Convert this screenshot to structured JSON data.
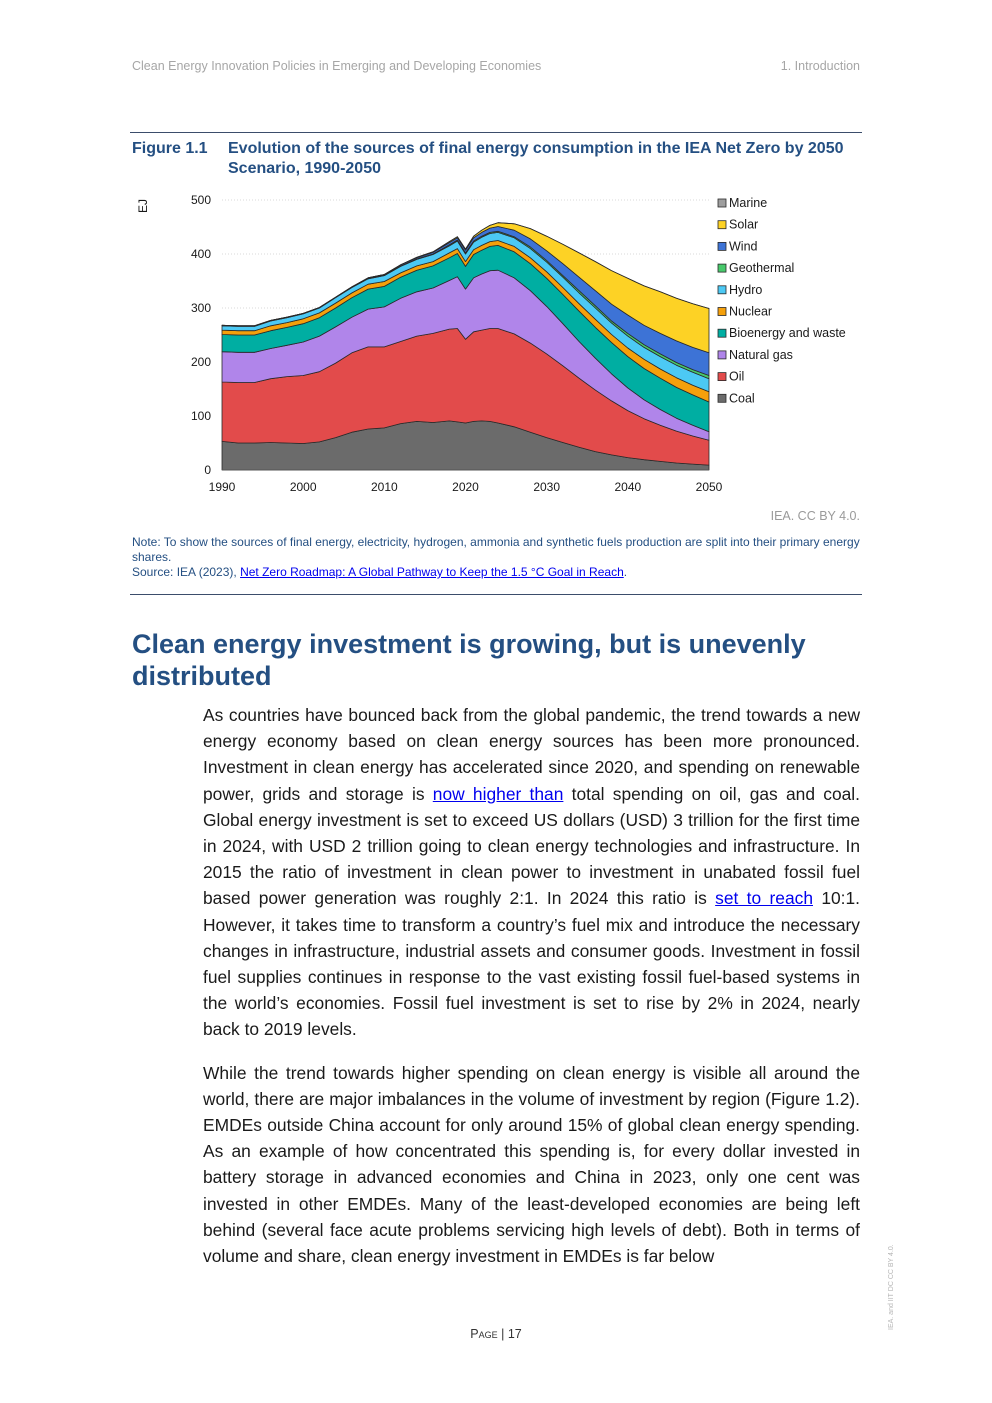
{
  "header": {
    "left": "Clean Energy Innovation Policies in Emerging and Developing Economies",
    "right": "1. Introduction"
  },
  "figure": {
    "number": "Figure 1.1",
    "title": "Evolution of the sources of final energy consumption in the IEA Net Zero by 2050 Scenario, 1990-2050",
    "credit": "IEA. CC BY 4.0.",
    "note": "Note: To show the sources of final energy, electricity, hydrogen, ammonia and synthetic fuels production are split into their primary energy shares.",
    "source_prefix": "Source: IEA (2023), ",
    "source_link": "Net Zero Roadmap: A Global Pathway to Keep the 1.5 °C Goal in Reach",
    "source_suffix": "."
  },
  "chart_data": {
    "type": "area",
    "stacked": true,
    "ylabel": "EJ",
    "ylim": [
      0,
      500
    ],
    "yticks": [
      "0",
      "100",
      "200",
      "300",
      "400",
      "500"
    ],
    "xlim": [
      1990,
      2050
    ],
    "xticks": [
      "1990",
      "2000",
      "2010",
      "2020",
      "2030",
      "2040",
      "2050"
    ],
    "legend_position": "right",
    "x": [
      1990,
      1992,
      1994,
      1996,
      1998,
      2000,
      2002,
      2004,
      2006,
      2008,
      2010,
      2012,
      2014,
      2016,
      2018,
      2019,
      2020,
      2021,
      2022,
      2023,
      2024,
      2026,
      2028,
      2030,
      2032,
      2034,
      2036,
      2038,
      2040,
      2042,
      2044,
      2046,
      2048,
      2050
    ],
    "series": [
      {
        "name": "Coal",
        "color": "#6b6b6b",
        "values": [
          53,
          50,
          50,
          51,
          50,
          49,
          52,
          60,
          70,
          76,
          78,
          86,
          90,
          88,
          91,
          89,
          87,
          90,
          91,
          90,
          87,
          80,
          70,
          60,
          51,
          42,
          34,
          28,
          23,
          19,
          16,
          13,
          11,
          9
        ]
      },
      {
        "name": "Oil",
        "color": "#e24b4b",
        "values": [
          110,
          112,
          112,
          118,
          123,
          126,
          130,
          138,
          147,
          152,
          150,
          152,
          158,
          165,
          170,
          173,
          155,
          166,
          168,
          172,
          175,
          172,
          165,
          155,
          142,
          128,
          114,
          100,
          87,
          76,
          67,
          59,
          52,
          46
        ]
      },
      {
        "name": "Natural gas",
        "color": "#b085ea",
        "values": [
          56,
          56,
          56,
          56,
          58,
          62,
          66,
          67,
          66,
          70,
          74,
          80,
          82,
          84,
          90,
          96,
          93,
          100,
          104,
          107,
          108,
          104,
          97,
          88,
          78,
          68,
          59,
          50,
          42,
          35,
          29,
          24,
          20,
          16
        ]
      },
      {
        "name": "Bioenergy and waste",
        "color": "#00aea2",
        "values": [
          32,
          32,
          32,
          33,
          33,
          34,
          34,
          35,
          36,
          37,
          38,
          39,
          40,
          41,
          42,
          43,
          42,
          43,
          44,
          45,
          46,
          48,
          50,
          52,
          54,
          56,
          57,
          58,
          58,
          58,
          58,
          57,
          56,
          55
        ]
      },
      {
        "name": "Nuclear",
        "color": "#f5a00b",
        "values": [
          8,
          8,
          8,
          9,
          9,
          9,
          9,
          9,
          9,
          9,
          9,
          8,
          8,
          8,
          9,
          9,
          9,
          9,
          9,
          9,
          9,
          10,
          11,
          12,
          13,
          14,
          15,
          15,
          16,
          17,
          17,
          18,
          18,
          19
        ]
      },
      {
        "name": "Hydro",
        "color": "#4cc9f4",
        "values": [
          8,
          8,
          8,
          9,
          9,
          9,
          9,
          10,
          10,
          10,
          11,
          12,
          12,
          13,
          13,
          14,
          14,
          14,
          15,
          15,
          15,
          16,
          17,
          18,
          19,
          20,
          21,
          21,
          22,
          22,
          23,
          23,
          24,
          24
        ]
      },
      {
        "name": "Geothermal",
        "color": "#47c96b",
        "values": [
          1,
          1,
          1,
          1,
          1,
          1,
          1,
          1,
          1,
          1,
          1,
          1,
          1,
          1,
          2,
          2,
          2,
          2,
          2,
          2,
          2,
          2,
          3,
          3,
          3,
          4,
          4,
          4,
          5,
          5,
          5,
          5,
          5,
          6
        ]
      },
      {
        "name": "Wind",
        "color": "#3d73d6",
        "values": [
          0,
          0,
          0,
          0,
          0,
          0,
          0,
          0,
          0,
          1,
          1,
          2,
          2,
          3,
          4,
          4,
          5,
          6,
          7,
          8,
          9,
          12,
          15,
          18,
          22,
          25,
          28,
          31,
          34,
          36,
          38,
          40,
          41,
          42
        ]
      },
      {
        "name": "Solar",
        "color": "#fdd225",
        "values": [
          0,
          0,
          0,
          0,
          0,
          0,
          0,
          0,
          0,
          0,
          0,
          0,
          1,
          1,
          2,
          2,
          2,
          3,
          4,
          5,
          7,
          12,
          19,
          27,
          36,
          45,
          54,
          62,
          68,
          73,
          77,
          79,
          81,
          82
        ]
      },
      {
        "name": "Marine",
        "color": "#9e9e9e",
        "values": [
          0,
          0,
          0,
          0,
          0,
          0,
          0,
          0,
          0,
          0,
          0,
          0,
          0,
          0,
          0,
          0,
          0,
          0,
          0,
          0,
          0,
          0,
          0,
          0,
          0,
          0,
          0,
          0,
          0,
          0,
          0,
          0,
          0,
          0
        ]
      }
    ]
  },
  "section": {
    "heading": "Clean energy investment is growing, but is unevenly distributed"
  },
  "body": {
    "p1_a": "As countries have bounced back from the global pandemic, the trend towards a new energy economy based on clean energy sources has been more pronounced. Investment in clean energy has accelerated since 2020, and spending on renewable power, grids and storage is ",
    "p1_link1": "now higher than",
    "p1_b": " total spending on oil, gas and coal. Global energy investment is set to exceed US dollars (USD) 3 trillion for the first time in 2024, with USD 2 trillion going to clean energy technologies and infrastructure. In 2015 the ratio of investment in clean power to investment in unabated fossil fuel based power generation was roughly 2:1. In 2024 this ratio is ",
    "p1_link2": "set to reach",
    "p1_c": " 10:1. However, it takes time to transform a country’s fuel mix and introduce the necessary changes in infrastructure, industrial assets and consumer goods. Investment in fossil fuel supplies continues in response to the vast existing fossil fuel-based systems in the world’s economies. Fossil fuel investment is set to rise by 2% in 2024, nearly back to 2019 levels.",
    "p2": "While the trend towards higher spending on clean energy is visible all around the world, there are major imbalances in the volume of investment by region (Figure 1.2). EMDEs outside China account for only around 15% of global clean energy spending. As an example of how concentrated this spending is, for every dollar invested in battery storage in advanced economies and China in 2023, only one cent was invested in other EMDEs. Many of the least-developed economies are being left behind (several face acute problems servicing high levels of debt). Both in terms of volume and share, clean energy investment in EMDEs is far below"
  },
  "footer": {
    "page_word": "Page",
    "page_sep": " | ",
    "page_num": "17",
    "side_license": "IEA. and IIT DC CC BY 4.0."
  }
}
